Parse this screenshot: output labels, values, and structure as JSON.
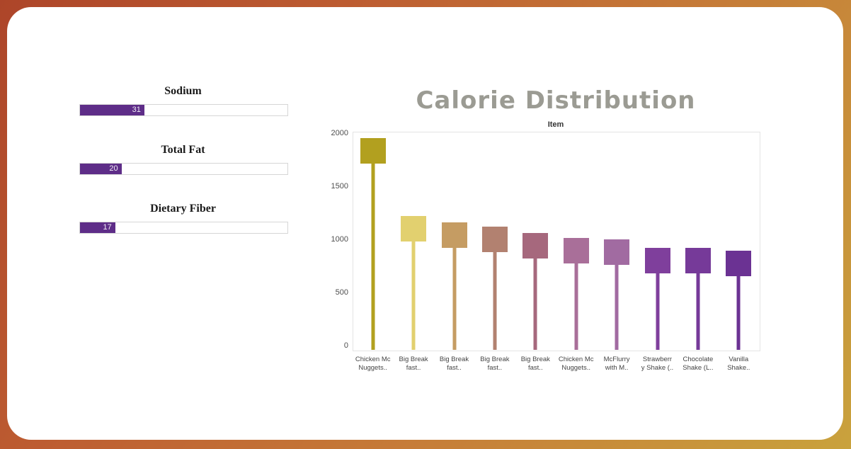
{
  "frame": {
    "gradient_start": "#ad4529",
    "gradient_end": "#c9a23d"
  },
  "gauges": {
    "accent_color": "#5e2d88",
    "items": [
      {
        "label": "Sodium",
        "value": 31,
        "max": 100
      },
      {
        "label": "Total Fat",
        "value": 20,
        "max": 100
      },
      {
        "label": "Dietary Fiber",
        "value": 17,
        "max": 100
      }
    ]
  },
  "chart": {
    "title": "Calorie Distribution",
    "title_color": "#9b9b93",
    "axis_header": "Item"
  },
  "chart_data": {
    "type": "bar",
    "variant": "lollipop",
    "title": "Calorie Distribution",
    "xlabel": "Item",
    "ylabel": "",
    "ylim": [
      0,
      2000
    ],
    "y_ticks": [
      0,
      500,
      1000,
      1500,
      2000
    ],
    "grid": false,
    "legend": "none",
    "categories": [
      "Chicken Mc Nuggets..",
      "Big Break fast..",
      "Big Break fast..",
      "Big Break fast..",
      "Big Break fast..",
      "Chicken Mc Nuggets..",
      "McFlurry with M..",
      "Strawberr y Shake (..",
      "Chocolate Shake (L..",
      "Vanilla Shake.."
    ],
    "category_lines": [
      [
        "Chicken Mc",
        "Nuggets.."
      ],
      [
        "Big Break",
        "fast.."
      ],
      [
        "Big Break",
        "fast.."
      ],
      [
        "Big Break",
        "fast.."
      ],
      [
        "Big Break",
        "fast.."
      ],
      [
        "Chicken Mc",
        "Nuggets.."
      ],
      [
        "McFlurry",
        "with M.."
      ],
      [
        "Strawberr",
        "y Shake (.."
      ],
      [
        "Chocolate",
        "Shake (L.."
      ],
      [
        "Vanilla",
        "Shake.."
      ]
    ],
    "values": [
      1880,
      1150,
      1090,
      1050,
      990,
      940,
      930,
      850,
      850,
      820
    ],
    "colors": [
      "#b2a01f",
      "#e2d06f",
      "#c59c63",
      "#b28170",
      "#a6687d",
      "#a96f99",
      "#a16ba1",
      "#7f3f9c",
      "#763a99",
      "#6b3293"
    ]
  }
}
